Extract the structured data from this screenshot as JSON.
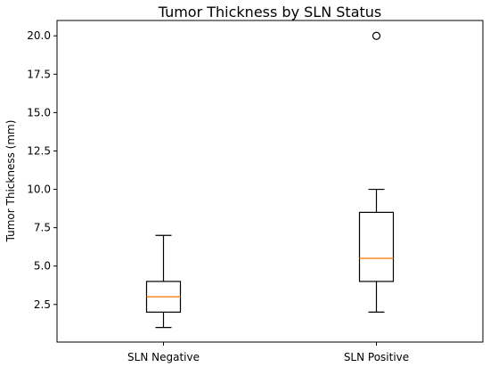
{
  "chart_data": {
    "type": "box",
    "title": "Tumor Thickness by SLN Status",
    "xlabel": "",
    "ylabel": "Tumor Thickness (mm)",
    "categories": [
      "SLN Negative",
      "SLN Positive"
    ],
    "ylim": [
      0.05,
      21.0
    ],
    "yticks": [
      2.5,
      5.0,
      7.5,
      10.0,
      12.5,
      15.0,
      17.5,
      20.0
    ],
    "ytick_labels": [
      "2.5",
      "5.0",
      "7.5",
      "10.0",
      "12.5",
      "15.0",
      "17.5",
      "20.0"
    ],
    "boxes": [
      {
        "category": "SLN Negative",
        "whisker_low": 1.0,
        "q1": 2.0,
        "median": 3.0,
        "q3": 4.0,
        "whisker_high": 7.0,
        "outliers": []
      },
      {
        "category": "SLN Positive",
        "whisker_low": 2.0,
        "q1": 4.0,
        "median": 5.5,
        "q3": 8.5,
        "whisker_high": 10.0,
        "outliers": [
          20.0
        ]
      }
    ],
    "median_color": "#ff7f0e",
    "box_color": "#000000",
    "grid": false
  }
}
